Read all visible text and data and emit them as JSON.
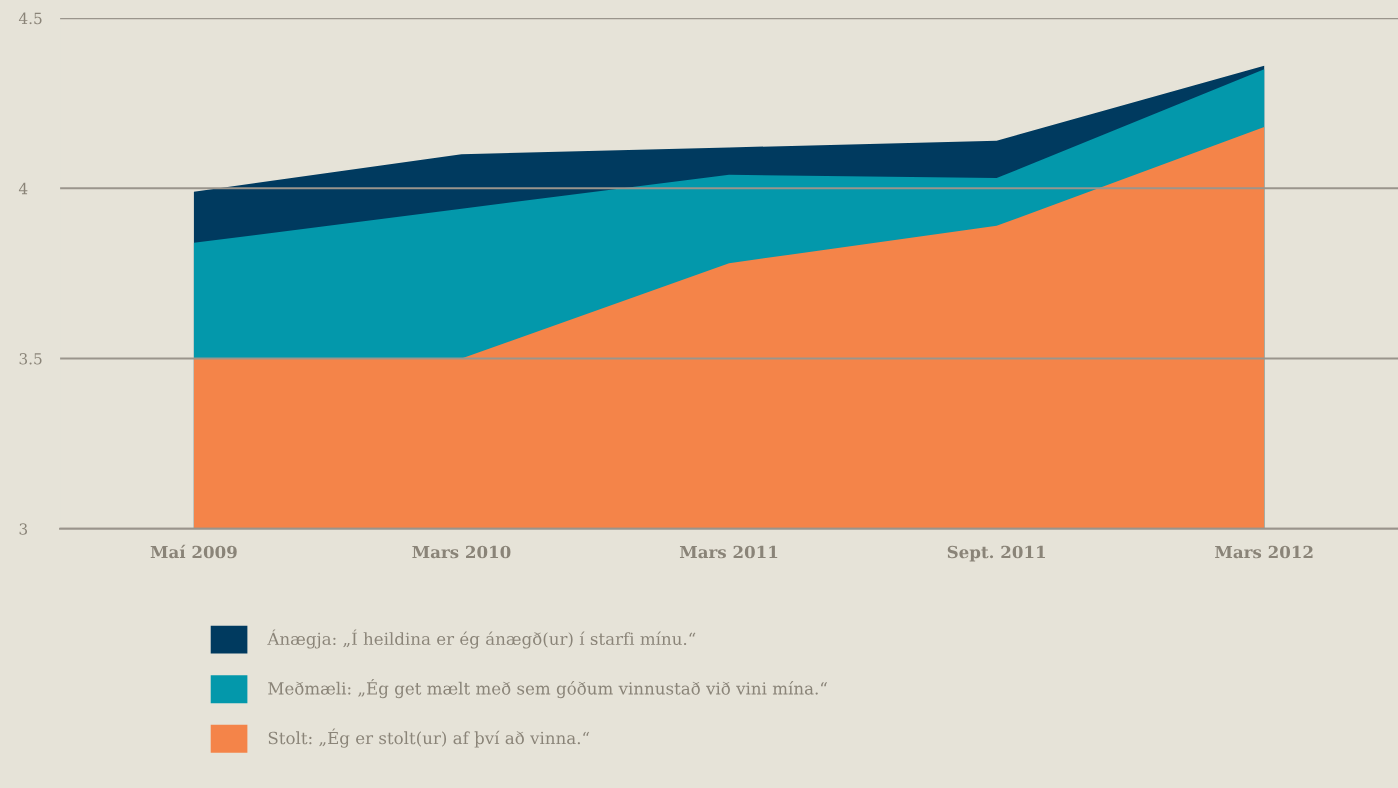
{
  "chart_data": {
    "type": "area",
    "categories": [
      "Maí 2009",
      "Mars 2010",
      "Mars 2011",
      "Sept. 2011",
      "Mars 2012"
    ],
    "series": [
      {
        "name": "Ánægja: „Í heildina er ég ánægð(ur) í starfi mínu.“",
        "color": "#003a5f",
        "values": [
          3.99,
          4.1,
          4.12,
          4.14,
          4.36
        ]
      },
      {
        "name": "Meðmæli: „Ég get mælt með sem góðum vinnustað við vini mína.“",
        "color": "#0398ab",
        "values": [
          3.84,
          3.94,
          4.04,
          4.03,
          4.35
        ]
      },
      {
        "name": "Stolt: „Ég er stolt(ur) af því að vinna.“",
        "color": "#f48449",
        "values": [
          3.5,
          3.5,
          3.78,
          3.89,
          4.18
        ]
      }
    ],
    "ylim": [
      3,
      4.5
    ],
    "yticks": [
      3,
      3.5,
      4,
      4.5
    ],
    "grid": "y",
    "legend": "bottom"
  }
}
